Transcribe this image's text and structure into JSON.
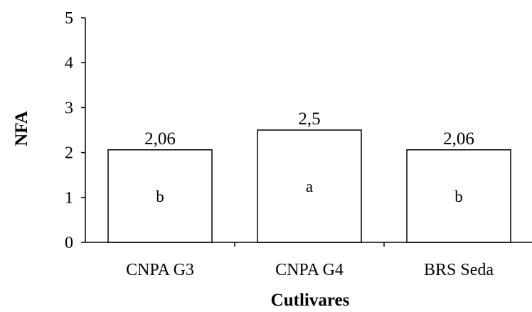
{
  "chart_data": {
    "type": "bar",
    "categories": [
      "CNPA G3",
      "CNPA G4",
      "BRS Seda"
    ],
    "values": [
      2.06,
      2.5,
      2.06
    ],
    "data_labels": [
      "2,06",
      "2,5",
      "2,06"
    ],
    "significance_letters": [
      "b",
      "a",
      "b"
    ],
    "xlabel": "Cutlivares",
    "ylabel": "NFA",
    "ylim": [
      0,
      5
    ],
    "yticks": [
      0,
      1,
      2,
      3,
      4,
      5
    ],
    "grid": false,
    "bar_fill": "#ffffff",
    "bar_stroke": "#000000"
  }
}
